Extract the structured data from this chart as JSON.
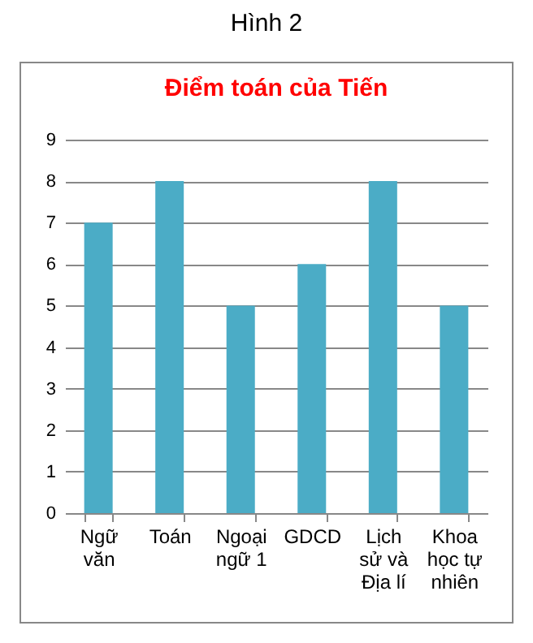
{
  "chart_data": {
    "type": "bar",
    "title": "Điểm toán của Tiến",
    "annotations": [
      "Hình 2"
    ],
    "categories": [
      "Ngữ văn",
      "Toán",
      "Ngoại ngữ 1",
      "GDCD",
      "Lịch sử và Địa lí",
      "Khoa học tự nhiên"
    ],
    "values": [
      7,
      8,
      5,
      6,
      8,
      5
    ],
    "color": "#4bacc6",
    "ylim": [
      0,
      9
    ],
    "yticks": [
      0,
      1,
      2,
      3,
      4,
      5,
      6,
      7,
      8,
      9
    ],
    "grid": "y"
  }
}
